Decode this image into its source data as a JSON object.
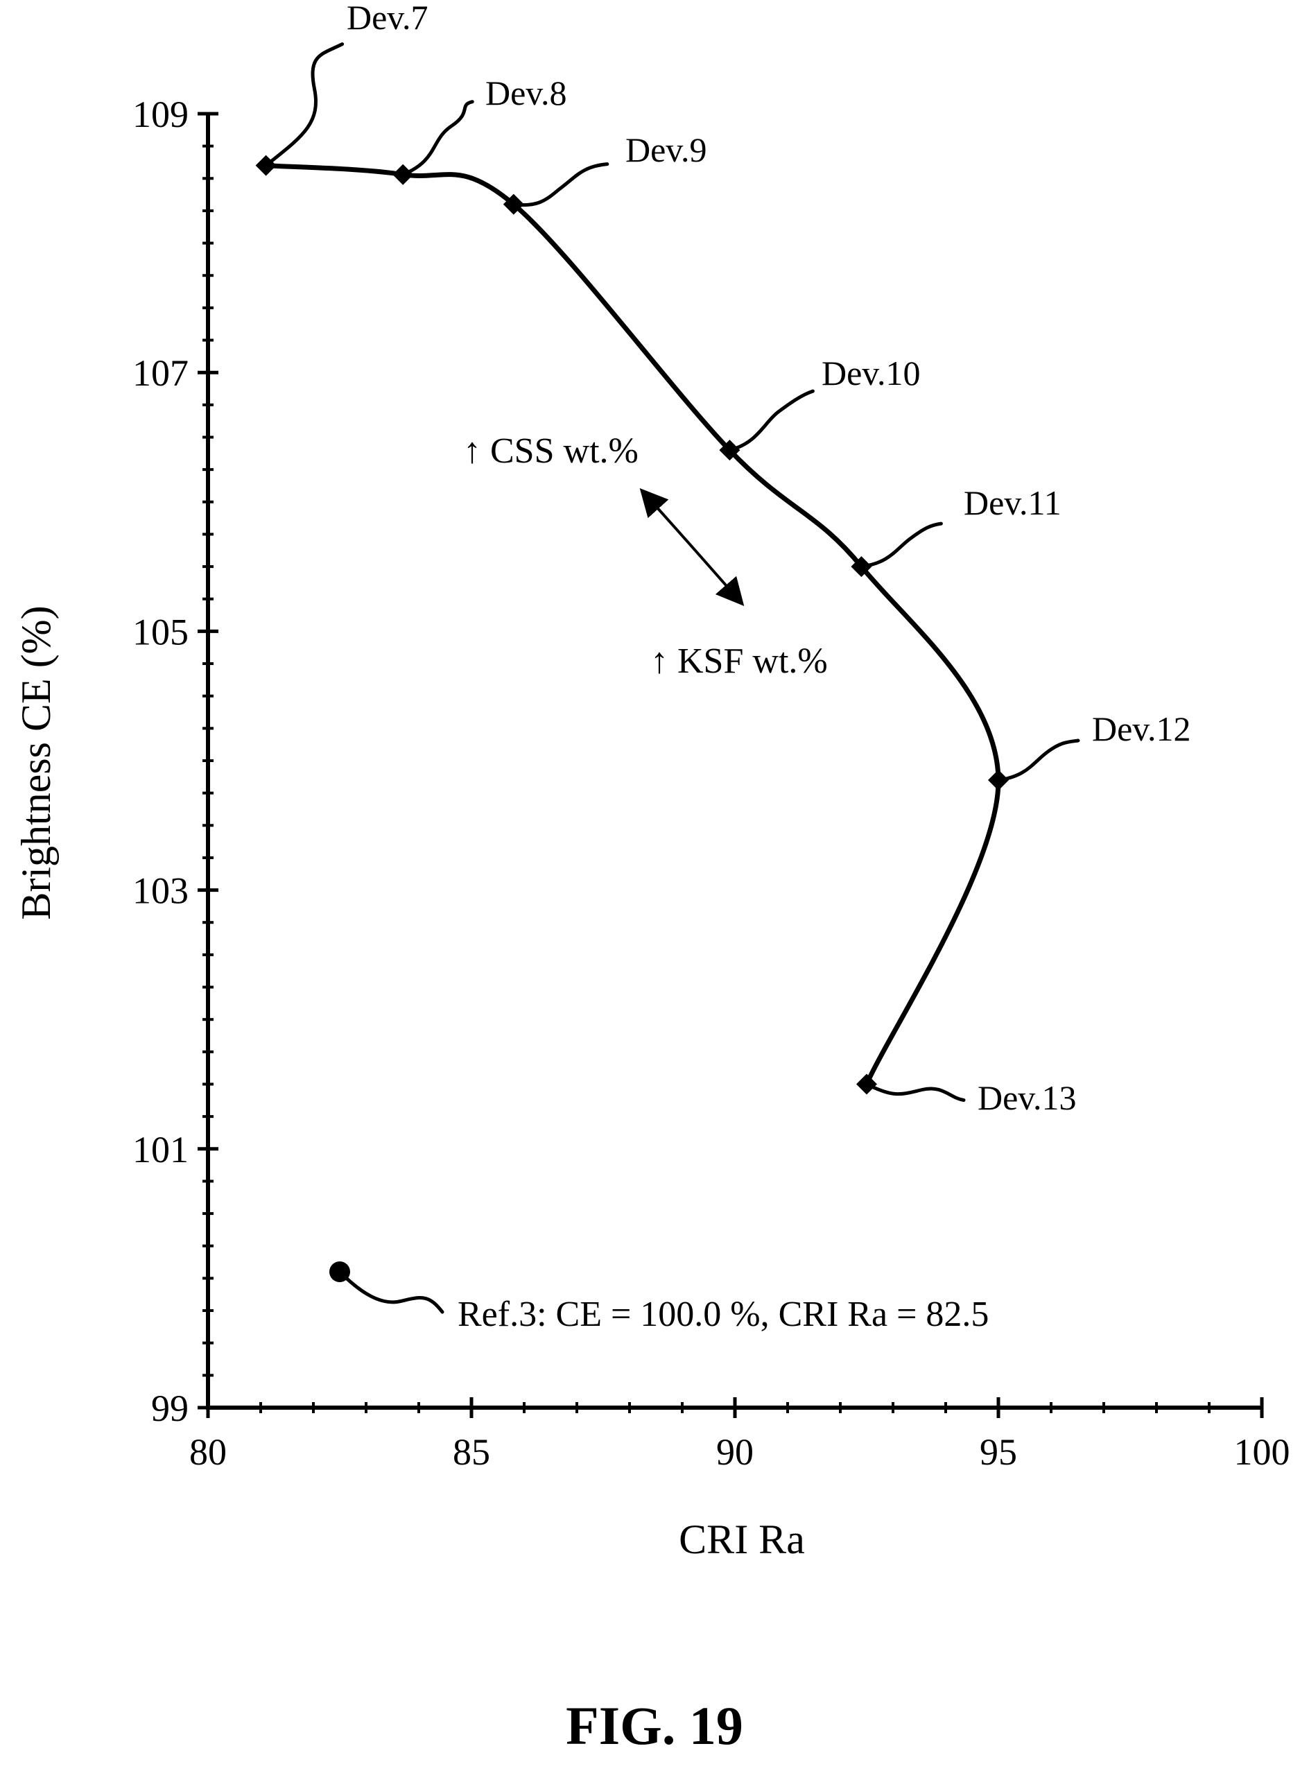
{
  "chart_data": {
    "type": "line",
    "title": "",
    "xlabel": "CRI Ra",
    "ylabel": "Brightness CE (%)",
    "xlim": [
      80,
      100
    ],
    "ylim": [
      99,
      109
    ],
    "x_ticks": [
      "80",
      "85",
      "90",
      "95",
      "100"
    ],
    "y_ticks": [
      "99",
      "101",
      "103",
      "105",
      "107",
      "109"
    ],
    "x_minor_step": 1,
    "y_minor_step": 0.25,
    "grid": false,
    "legend": "none",
    "series": [
      {
        "marker": "diamond",
        "color": "#000000",
        "points": [
          {
            "label": "Dev.7",
            "x": 81.1,
            "y": 108.6
          },
          {
            "label": "Dev.8",
            "x": 83.7,
            "y": 108.53
          },
          {
            "label": "Dev.9",
            "x": 85.8,
            "y": 108.3
          },
          {
            "label": "Dev.10",
            "x": 89.9,
            "y": 106.4
          },
          {
            "label": "Dev.11",
            "x": 92.4,
            "y": 105.5
          },
          {
            "label": "Dev.12",
            "x": 95.0,
            "y": 103.85
          },
          {
            "label": "Dev.13",
            "x": 92.5,
            "y": 101.5
          }
        ]
      }
    ],
    "reference": {
      "marker": "circle",
      "x": 82.5,
      "y": 100.05,
      "label": "Ref.3: CE = 100.0 %, CRI Ra = 82.5"
    },
    "annotations": {
      "upper": "↑ CSS wt.%",
      "lower": "↑ KSF wt.%"
    }
  },
  "caption": "FIG. 19"
}
